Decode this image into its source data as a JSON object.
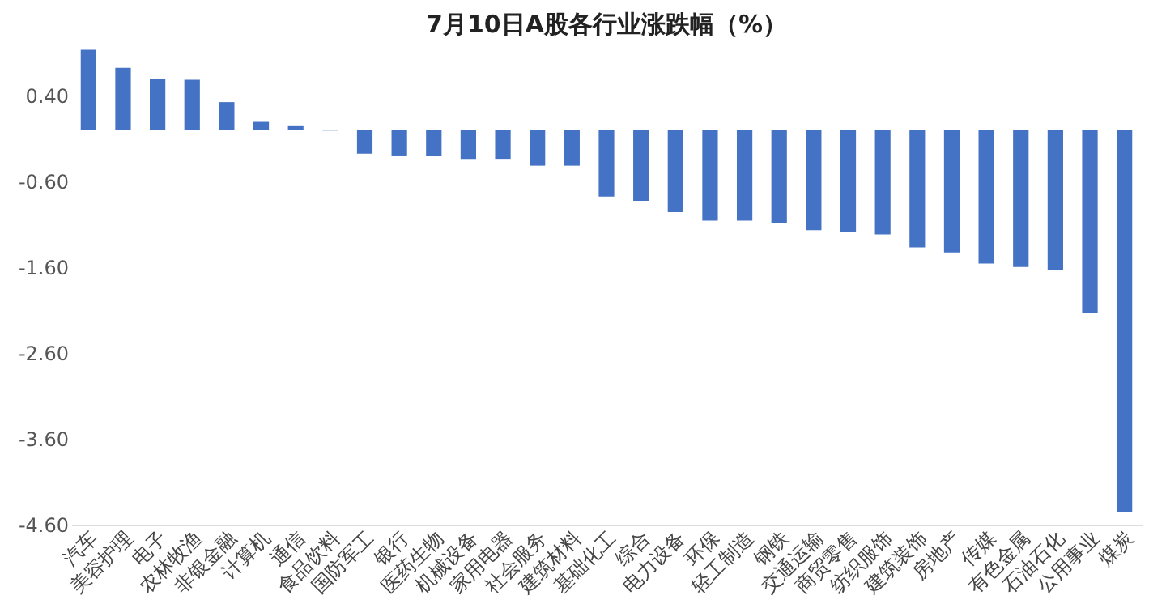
{
  "chart_data": {
    "type": "bar",
    "title": "7月10日A股各行业涨跌幅（%）",
    "categories": [
      "汽车",
      "美容护理",
      "电子",
      "农林牧渔",
      "非银金融",
      "计算机",
      "通信",
      "食品饮料",
      "国防军工",
      "银行",
      "医药生物",
      "机械设备",
      "家用电器",
      "社会服务",
      "建筑材料",
      "基础化工",
      "综合",
      "电力设备",
      "环保",
      "轻工制造",
      "钢铁",
      "交通运输",
      "商贸零售",
      "纺织服饰",
      "建筑装饰",
      "房地产",
      "传媒",
      "有色金属",
      "石油石化",
      "公用事业",
      "煤炭"
    ],
    "values": [
      0.93,
      0.72,
      0.59,
      0.58,
      0.32,
      0.09,
      0.04,
      -0.01,
      -0.28,
      -0.31,
      -0.31,
      -0.34,
      -0.34,
      -0.42,
      -0.42,
      -0.78,
      -0.83,
      -0.96,
      -1.06,
      -1.06,
      -1.09,
      -1.17,
      -1.19,
      -1.22,
      -1.37,
      -1.43,
      -1.56,
      -1.6,
      -1.63,
      -2.13,
      -4.45
    ],
    "color": "#4472c4",
    "ylim": [
      -4.6,
      1.0
    ],
    "yticks": [
      {
        "value": 0.4,
        "label": "0.40"
      },
      {
        "value": -0.6,
        "label": "-0.60"
      },
      {
        "value": -1.6,
        "label": "-1.60"
      },
      {
        "value": -2.6,
        "label": "-2.60"
      },
      {
        "value": -3.6,
        "label": "-3.60"
      },
      {
        "value": -4.6,
        "label": "-4.60"
      }
    ],
    "grid": false
  }
}
